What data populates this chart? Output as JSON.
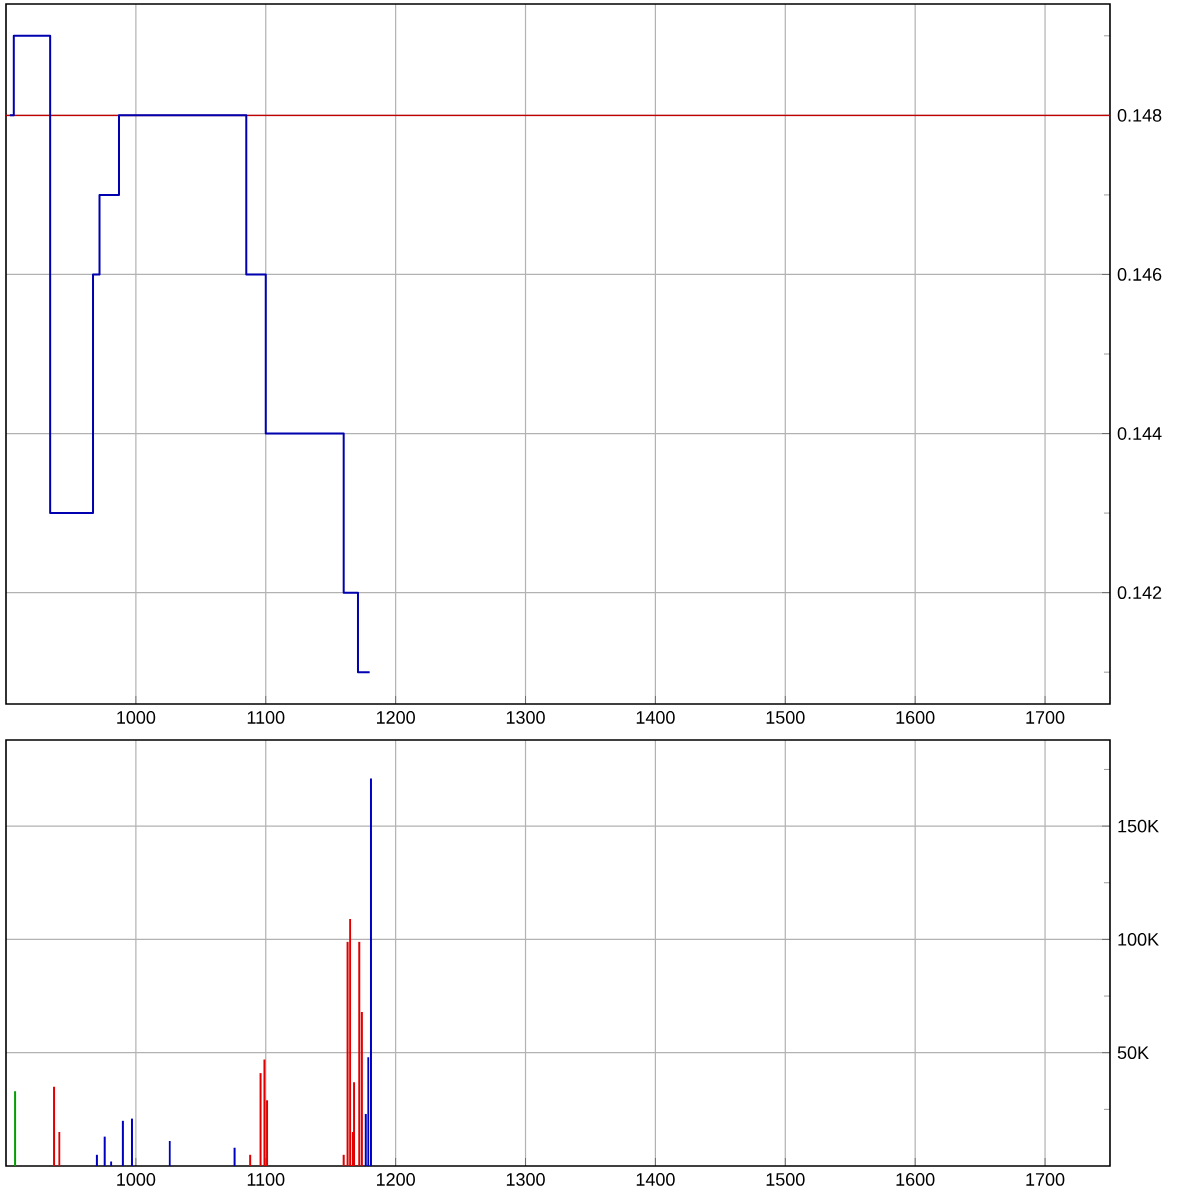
{
  "chart_data": [
    {
      "type": "step",
      "grid": true,
      "tick_labels": "xy",
      "x": [
        903,
        906,
        934,
        967,
        972,
        987,
        1085,
        1100,
        1160,
        1171,
        1180
      ],
      "series": [
        {
          "color": "#0000b0",
          "values": [
            0.148,
            0.149,
            0.143,
            0.146,
            0.147,
            0.148,
            0.146,
            0.144,
            0.142,
            0.141,
            0.141
          ]
        }
      ],
      "ref_lines": [
        {
          "axis": "y",
          "value": 0.148,
          "color": "#c00000"
        }
      ],
      "xlim": [
        900,
        1750
      ],
      "ylim": [
        0.1406,
        0.1494
      ],
      "xticks": [
        1000,
        1100,
        1200,
        1300,
        1400,
        1500,
        1600,
        1700
      ],
      "yticks": [
        {
          "value": 0.141,
          "label": null
        },
        0.142,
        {
          "value": 0.143,
          "label": null
        },
        0.144,
        {
          "value": 0.145,
          "label": null
        },
        0.146,
        {
          "value": 0.147,
          "label": null
        },
        0.148,
        {
          "value": 0.149,
          "label": null
        }
      ]
    },
    {
      "type": "bar",
      "grid": true,
      "x": [
        907,
        937,
        941,
        970,
        976,
        981,
        990,
        997,
        1026,
        1076,
        1088,
        1096,
        1099,
        1101,
        1160,
        1163,
        1165,
        1167,
        1168,
        1172,
        1174,
        1177,
        1179,
        1181
      ],
      "values": [
        33000,
        35000,
        15000,
        5000,
        13000,
        2000,
        20000,
        21000,
        11000,
        8000,
        5000,
        41000,
        47000,
        29000,
        5000,
        99000,
        109000,
        15000,
        37000,
        99000,
        68000,
        23000,
        48000,
        171000
      ],
      "colors": [
        "#00a000",
        "#e00000",
        "#e00000",
        "#0000c0",
        "#0000c0",
        "#0000c0",
        "#0000c0",
        "#0000c0",
        "#0000c0",
        "#0000c0",
        "#e00000",
        "#e00000",
        "#e00000",
        "#e00000",
        "#e00000",
        "#e00000",
        "#e00000",
        "#e00000",
        "#e00000",
        "#e00000",
        "#e00000",
        "#0000c0",
        "#0000c0",
        "#0000c0"
      ],
      "xlim": [
        900,
        1750
      ],
      "ylim": [
        0,
        188000
      ],
      "xticks": [
        1000,
        1100,
        1200,
        1300,
        1400,
        1500,
        1600,
        1700
      ],
      "yticks": [
        {
          "value": 25000,
          "label": null
        },
        {
          "value": 50000,
          "label": "50K"
        },
        {
          "value": 75000,
          "label": null
        },
        {
          "value": 100000,
          "label": "100K"
        },
        {
          "value": 125000,
          "label": null
        },
        {
          "value": 150000,
          "label": "150K"
        },
        {
          "value": 175000,
          "label": null
        }
      ]
    }
  ]
}
